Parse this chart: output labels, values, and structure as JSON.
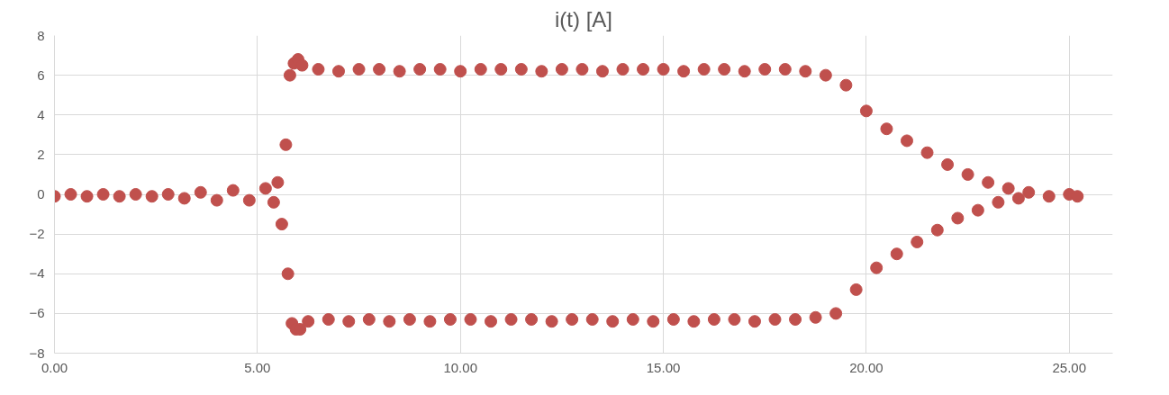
{
  "chart_data": {
    "type": "scatter",
    "title": "i(t) [A]",
    "marker": "circle",
    "grid": true,
    "xlim": [
      0,
      26.07
    ],
    "ylim": [
      -8,
      8
    ],
    "xticks": [
      {
        "value": 0,
        "label": "0.00"
      },
      {
        "value": 5,
        "label": "5.00"
      },
      {
        "value": 10,
        "label": "10.00"
      },
      {
        "value": 15,
        "label": "15.00"
      },
      {
        "value": 20,
        "label": "20.00"
      },
      {
        "value": 25,
        "label": "25.00"
      }
    ],
    "yticks": [
      -8,
      -6,
      -4,
      -2,
      0,
      2,
      4,
      6,
      8
    ],
    "series": [
      {
        "color": "#c0504d",
        "x": [
          0,
          0.4,
          0.8,
          1.2,
          1.6,
          2.0,
          2.4,
          2.8,
          3.2,
          3.6,
          4.0,
          4.4,
          4.8,
          5.2,
          5.4,
          5.5,
          5.6,
          5.7,
          5.75,
          5.8,
          5.85,
          5.9,
          5.95,
          6.0,
          6.05,
          6.1,
          6.25,
          6.5,
          6.75,
          7.0,
          7.25,
          7.5,
          7.75,
          8.0,
          8.25,
          8.5,
          8.75,
          9.0,
          9.25,
          9.5,
          9.75,
          10.0,
          10.25,
          10.5,
          10.75,
          11.0,
          11.25,
          11.5,
          11.75,
          12.0,
          12.25,
          12.5,
          12.75,
          13.0,
          13.25,
          13.5,
          13.75,
          14.0,
          14.25,
          14.5,
          14.75,
          15.0,
          15.25,
          15.5,
          15.75,
          16.0,
          16.25,
          16.5,
          16.75,
          17.0,
          17.25,
          17.5,
          17.75,
          18.0,
          18.25,
          18.5,
          18.75,
          19.0,
          19.25,
          19.5,
          19.75,
          20.0,
          20.25,
          20.5,
          20.75,
          21.0,
          21.25,
          21.5,
          21.75,
          22.0,
          22.25,
          22.5,
          22.75,
          23.0,
          23.25,
          23.5,
          23.75,
          24.0,
          24.5,
          25.0,
          25.2
        ],
        "values": [
          -0.1,
          0.0,
          -0.1,
          0.0,
          -0.1,
          0.0,
          -0.1,
          0.0,
          -0.2,
          0.1,
          -0.3,
          0.2,
          -0.3,
          0.3,
          -0.4,
          0.6,
          -1.5,
          2.5,
          -4.0,
          6.0,
          -6.5,
          6.6,
          -6.8,
          6.8,
          -6.8,
          6.5,
          -6.4,
          6.3,
          -6.3,
          6.2,
          -6.4,
          6.3,
          -6.3,
          6.3,
          -6.4,
          6.2,
          -6.3,
          6.3,
          -6.4,
          6.3,
          -6.3,
          6.2,
          -6.3,
          6.3,
          -6.4,
          6.3,
          -6.3,
          6.3,
          -6.3,
          6.2,
          -6.4,
          6.3,
          -6.3,
          6.3,
          -6.3,
          6.2,
          -6.4,
          6.3,
          -6.3,
          6.3,
          -6.4,
          6.3,
          -6.3,
          6.2,
          -6.4,
          6.3,
          -6.3,
          6.3,
          -6.3,
          6.2,
          -6.4,
          6.3,
          -6.3,
          6.3,
          -6.3,
          6.2,
          -6.2,
          6.0,
          -6.0,
          5.5,
          -4.8,
          4.2,
          -3.7,
          3.3,
          -3.0,
          2.7,
          -2.4,
          2.1,
          -1.8,
          1.5,
          -1.2,
          1.0,
          -0.8,
          0.6,
          -0.4,
          0.3,
          -0.2,
          0.1,
          -0.1,
          0.0,
          -0.1
        ]
      }
    ]
  }
}
